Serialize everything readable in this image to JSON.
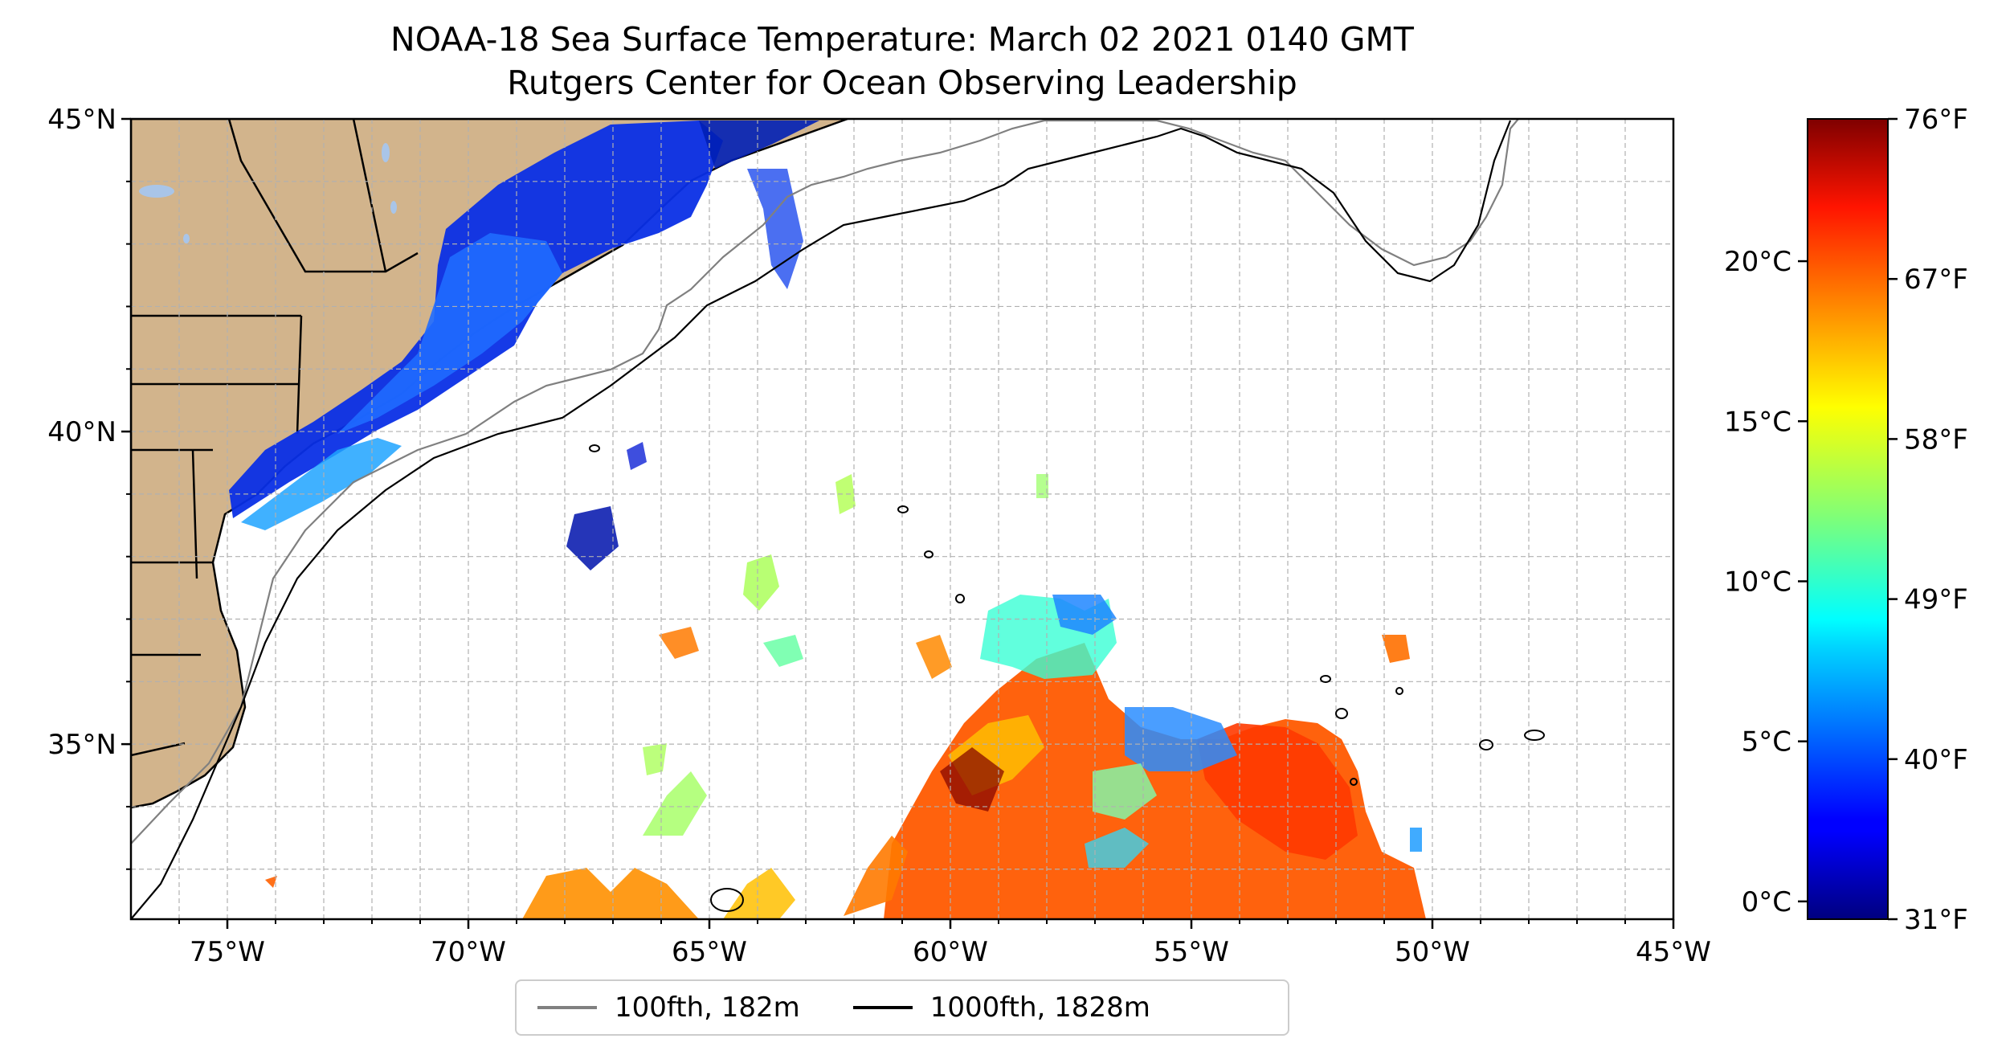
{
  "title": "NOAA-18 Sea Surface Temperature: March 02 2021 0140 GMT",
  "subtitle": "Rutgers Center for Ocean Observing Leadership",
  "map": {
    "lon_range": [
      -77,
      -45
    ],
    "lat_range": [
      32.2,
      45
    ],
    "lon_ticks": [
      "75°W",
      "70°W",
      "65°W",
      "60°W",
      "55°W",
      "50°W",
      "45°W"
    ],
    "lat_ticks": [
      "45°N",
      "40°N",
      "35°N"
    ],
    "gridlines": true,
    "land_color": "#d2b48c",
    "water_feature_color": "#a9c5e8"
  },
  "legend": {
    "items": [
      {
        "label": "100fth, 182m",
        "color": "#808080"
      },
      {
        "label": "1000fth, 1828m",
        "color": "#000000"
      }
    ],
    "placement": "bottom-center"
  },
  "colorbar": {
    "colormap": "jet",
    "celsius_ticks": [
      "0°C",
      "5°C",
      "10°C",
      "15°C",
      "20°C"
    ],
    "fahrenheit_ticks": [
      "31°F",
      "40°F",
      "49°F",
      "58°F",
      "67°F",
      "76°F"
    ],
    "range_f": [
      31,
      76
    ]
  }
}
